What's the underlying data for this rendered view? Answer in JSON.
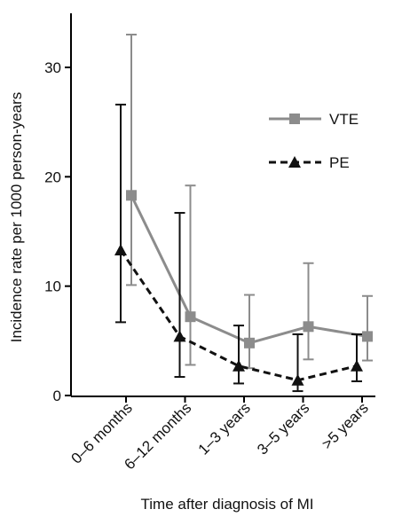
{
  "chart_data": {
    "type": "line",
    "categories": [
      "0–6 months",
      "6–12 months",
      "1–3 years",
      "3–5 years",
      ">5 years"
    ],
    "series": [
      {
        "name": "VTE",
        "color": "#8c8c8c",
        "line_style": "solid",
        "marker": "square",
        "values": [
          18.3,
          7.2,
          4.8,
          6.3,
          5.4
        ],
        "ci_low": [
          10.1,
          2.8,
          2.5,
          3.3,
          3.2
        ],
        "ci_high": [
          33.0,
          19.2,
          9.2,
          12.1,
          9.1
        ]
      },
      {
        "name": "PE",
        "color": "#111111",
        "line_style": "dashed",
        "marker": "triangle",
        "values": [
          13.3,
          5.4,
          2.7,
          1.4,
          2.7
        ],
        "ci_low": [
          6.7,
          1.7,
          1.1,
          0.4,
          1.3
        ],
        "ci_high": [
          26.6,
          16.7,
          6.4,
          5.6,
          5.6
        ]
      }
    ],
    "xlabel": "Time after diagnosis of MI",
    "ylabel": "Incidence rate per 1000 person-years",
    "ylim": [
      0,
      35
    ],
    "yticks": [
      "0",
      "10",
      "20",
      "30"
    ],
    "grid": false,
    "legend_position": "upper-right"
  }
}
